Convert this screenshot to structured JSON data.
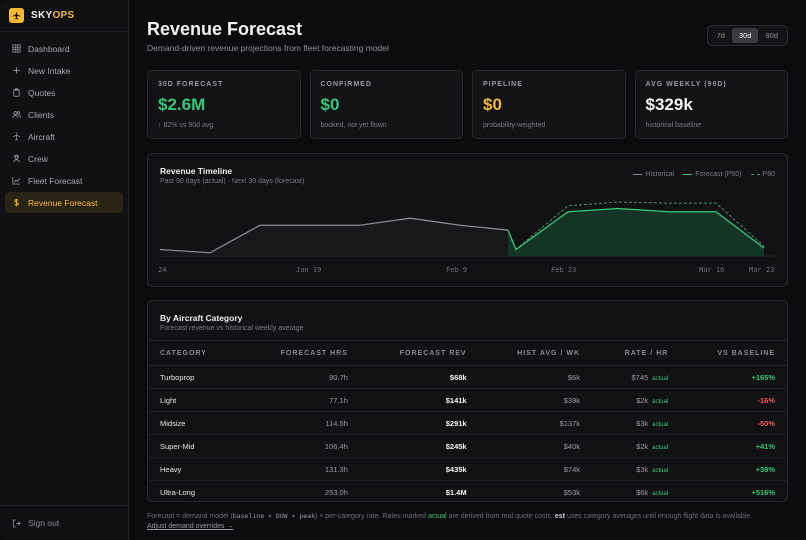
{
  "brand": {
    "sky": "SKY",
    "ops": "OPS"
  },
  "sidebar": {
    "items": [
      {
        "label": "Dashboard",
        "icon": "grid-icon"
      },
      {
        "label": "New Intake",
        "icon": "plus-icon"
      },
      {
        "label": "Quotes",
        "icon": "clipboard-icon"
      },
      {
        "label": "Clients",
        "icon": "users-icon"
      },
      {
        "label": "Aircraft",
        "icon": "plane-icon"
      },
      {
        "label": "Crew",
        "icon": "crew-icon"
      },
      {
        "label": "Fleet Forecast",
        "icon": "chart-icon"
      },
      {
        "label": "Revenue Forecast",
        "icon": "dollar-icon"
      }
    ],
    "signout": "Sign out"
  },
  "header": {
    "title": "Revenue Forecast",
    "subtitle": "Demand-driven revenue projections from fleet forecasting model",
    "ranges": [
      "7d",
      "30d",
      "90d"
    ],
    "active_range": "30d"
  },
  "kpis": [
    {
      "label": "30D FORECAST",
      "value": "$2.6M",
      "note": "↑ 82% vs 90d avg",
      "color": "#35c77a"
    },
    {
      "label": "CONFIRMED",
      "value": "$0",
      "note": "booked, not yet flown",
      "color": "#35c77a"
    },
    {
      "label": "PIPELINE",
      "value": "$0",
      "note": "probability-weighted",
      "color": "#f5b82e"
    },
    {
      "label": "AVG WEEKLY (90D)",
      "value": "$329k",
      "note": "historical baseline",
      "color": "#f4f4f6"
    }
  ],
  "timeline": {
    "title": "Revenue Timeline",
    "subtitle": "Past 90 days (actual) · Next 30 days (forecast)",
    "legend": [
      "Historical",
      "Forecast (P50)",
      "P80"
    ]
  },
  "chart_data": {
    "type": "line",
    "x_ticks": [
      "24",
      "Jan 19",
      "Feb 9",
      "Feb 23",
      "Mar 16",
      "Mar 23"
    ],
    "series": [
      {
        "name": "Historical",
        "color": "#8a8a92",
        "values": [
          0.12,
          0.06,
          0.57,
          0.57,
          0.57,
          0.7,
          0.57,
          0.48
        ]
      },
      {
        "name": "Forecast (P50)",
        "color": "#35c77a",
        "values": [
          0.48,
          0.12,
          0.82,
          0.88,
          0.82,
          0.82,
          0.15
        ]
      },
      {
        "name": "P80",
        "color": "#4a8f6a",
        "values": [
          0.48,
          0.12,
          0.93,
          1.0,
          0.98,
          0.98,
          0.18
        ]
      }
    ],
    "grid": false
  },
  "category": {
    "title": "By Aircraft Category",
    "subtitle": "Forecast revenue vs historical weekly average",
    "columns": [
      "CATEGORY",
      "FORECAST HRS",
      "FORECAST REV",
      "HIST AVG / WK",
      "RATE / HR",
      "VS BASELINE"
    ],
    "tag": "actual",
    "rows": [
      {
        "cat": "Turboprop",
        "hrs": "90.7h",
        "rev": "$68k",
        "hist": "$6k",
        "rate": "$745",
        "base": "+165%",
        "pos": true
      },
      {
        "cat": "Light",
        "hrs": "77.1h",
        "rev": "$141k",
        "hist": "$39k",
        "rate": "$2k",
        "base": "-16%",
        "pos": false
      },
      {
        "cat": "Midsize",
        "hrs": "114.5h",
        "rev": "$291k",
        "hist": "$137k",
        "rate": "$3k",
        "base": "-50%",
        "pos": false
      },
      {
        "cat": "Super-Mid",
        "hrs": "106.4h",
        "rev": "$245k",
        "hist": "$40k",
        "rate": "$2k",
        "base": "+41%",
        "pos": true
      },
      {
        "cat": "Heavy",
        "hrs": "131.3h",
        "rev": "$435k",
        "hist": "$74k",
        "rate": "$3k",
        "base": "+38%",
        "pos": true
      },
      {
        "cat": "Ultra-Long",
        "hrs": "253.0h",
        "rev": "$1.4M",
        "hist": "$53k",
        "rate": "$6k",
        "base": "+516%",
        "pos": true
      }
    ]
  },
  "footnote": {
    "p1": "Forecast = demand model (",
    "code": "baseline × DOW × peak",
    "p2": ") × per-category rate. Rates marked ",
    "actual": "actual",
    "p3": " are derived from real quote costs; ",
    "est": "est",
    "p4": " uses category averages until enough flight data is available.",
    "link": "Adjust demand overrides →"
  }
}
